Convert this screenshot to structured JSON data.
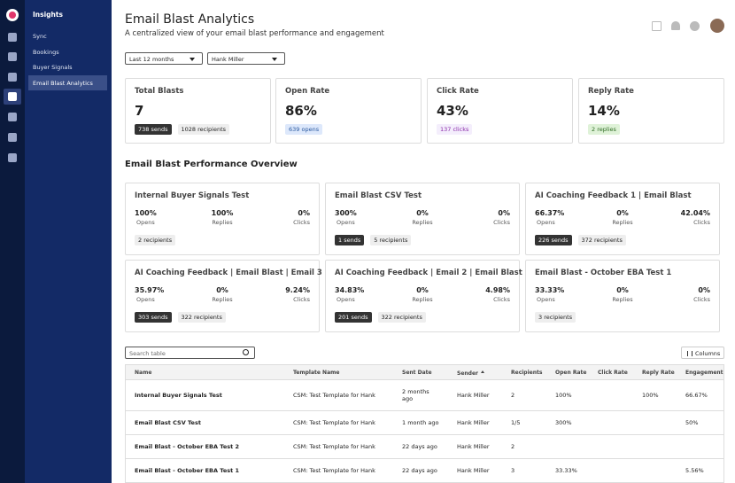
{
  "sidebar": {
    "title": "Insights",
    "items": [
      "Sync",
      "Bookings",
      "Buyer Signals",
      "Email Blast Analytics"
    ],
    "active": 3
  },
  "header": {
    "title": "Email Blast Analytics",
    "subtitle": "A centralized view of your email blast performance and engagement"
  },
  "filters": [
    "Last 12 months",
    "Hank Miller"
  ],
  "kpis": [
    {
      "title": "Total Blasts",
      "value": "7",
      "badges": [
        {
          "text": "738 sends",
          "style": "dark"
        },
        {
          "text": "1028 recipients",
          "style": "gray"
        }
      ]
    },
    {
      "title": "Open Rate",
      "value": "86%",
      "badges": [
        {
          "text": "639 opens",
          "style": "blue"
        }
      ]
    },
    {
      "title": "Click Rate",
      "value": "43%",
      "badges": [
        {
          "text": "137 clicks",
          "style": "purple"
        }
      ]
    },
    {
      "title": "Reply Rate",
      "value": "14%",
      "badges": [
        {
          "text": "2 replies",
          "style": "green"
        }
      ]
    }
  ],
  "section_title": "Email Blast Performance Overview",
  "cards": [
    {
      "name": "Internal Buyer Signals Test",
      "metrics": [
        {
          "value": "100%",
          "label": "Opens"
        },
        {
          "value": "100%",
          "label": "Replies"
        },
        {
          "value": "0%",
          "label": "Clicks"
        }
      ],
      "badges": [
        {
          "text": "2 recipients",
          "style": "gray"
        }
      ]
    },
    {
      "name": "Email Blast CSV Test",
      "metrics": [
        {
          "value": "300%",
          "label": "Opens"
        },
        {
          "value": "0%",
          "label": "Replies"
        },
        {
          "value": "0%",
          "label": "Clicks"
        }
      ],
      "badges": [
        {
          "text": "1 sends",
          "style": "dark"
        },
        {
          "text": "5 recipients",
          "style": "gray"
        }
      ]
    },
    {
      "name": "AI Coaching Feedback 1 | Email Blast",
      "metrics": [
        {
          "value": "66.37%",
          "label": "Opens"
        },
        {
          "value": "0%",
          "label": "Replies"
        },
        {
          "value": "42.04%",
          "label": "Clicks"
        }
      ],
      "badges": [
        {
          "text": "226 sends",
          "style": "dark"
        },
        {
          "text": "372 recipients",
          "style": "gray"
        }
      ]
    },
    {
      "name": "AI Coaching Feedback | Email Blast | Email 3",
      "metrics": [
        {
          "value": "35.97%",
          "label": "Opens"
        },
        {
          "value": "0%",
          "label": "Replies"
        },
        {
          "value": "9.24%",
          "label": "Clicks"
        }
      ],
      "badges": [
        {
          "text": "303 sends",
          "style": "dark"
        },
        {
          "text": "322 recipients",
          "style": "gray"
        }
      ]
    },
    {
      "name": "AI Coaching Feedback | Email 2 | Email Blast",
      "metrics": [
        {
          "value": "34.83%",
          "label": "Opens"
        },
        {
          "value": "0%",
          "label": "Replies"
        },
        {
          "value": "4.98%",
          "label": "Clicks"
        }
      ],
      "badges": [
        {
          "text": "201 sends",
          "style": "dark"
        },
        {
          "text": "322 recipients",
          "style": "gray"
        }
      ]
    },
    {
      "name": "Email Blast - October EBA Test 1",
      "metrics": [
        {
          "value": "33.33%",
          "label": "Opens"
        },
        {
          "value": "0%",
          "label": "Replies"
        },
        {
          "value": "0%",
          "label": "Clicks"
        }
      ],
      "badges": [
        {
          "text": "3 recipients",
          "style": "gray"
        }
      ]
    }
  ],
  "table": {
    "search_placeholder": "Search table",
    "columns_button": "Columns",
    "headers": [
      "Name",
      "Template Name",
      "Sent Date",
      "Sender",
      "Recipients",
      "Open Rate",
      "Click Rate",
      "Reply Rate",
      "Engagement"
    ],
    "rows": [
      [
        "Internal Buyer Signals Test",
        "CSM: Test Template for Hank",
        "2 months ago",
        "Hank Miller",
        "2",
        "100%",
        null,
        "100%",
        "66.67%"
      ],
      [
        "Email Blast CSV Test",
        "CSM: Test Template for Hank",
        "1 month ago",
        "Hank Miller",
        "1/5",
        "300%",
        null,
        null,
        "50%"
      ],
      [
        "Email Blast - October EBA Test 2",
        "CSM: Test Template for Hank",
        "22 days ago",
        "Hank Miller",
        "2",
        null,
        null,
        null,
        null
      ],
      [
        "Email Blast - October EBA Test 1",
        "CSM: Test Template for Hank",
        "22 days ago",
        "Hank Miller",
        "3",
        "33.33%",
        null,
        null,
        "5.56%"
      ]
    ]
  }
}
